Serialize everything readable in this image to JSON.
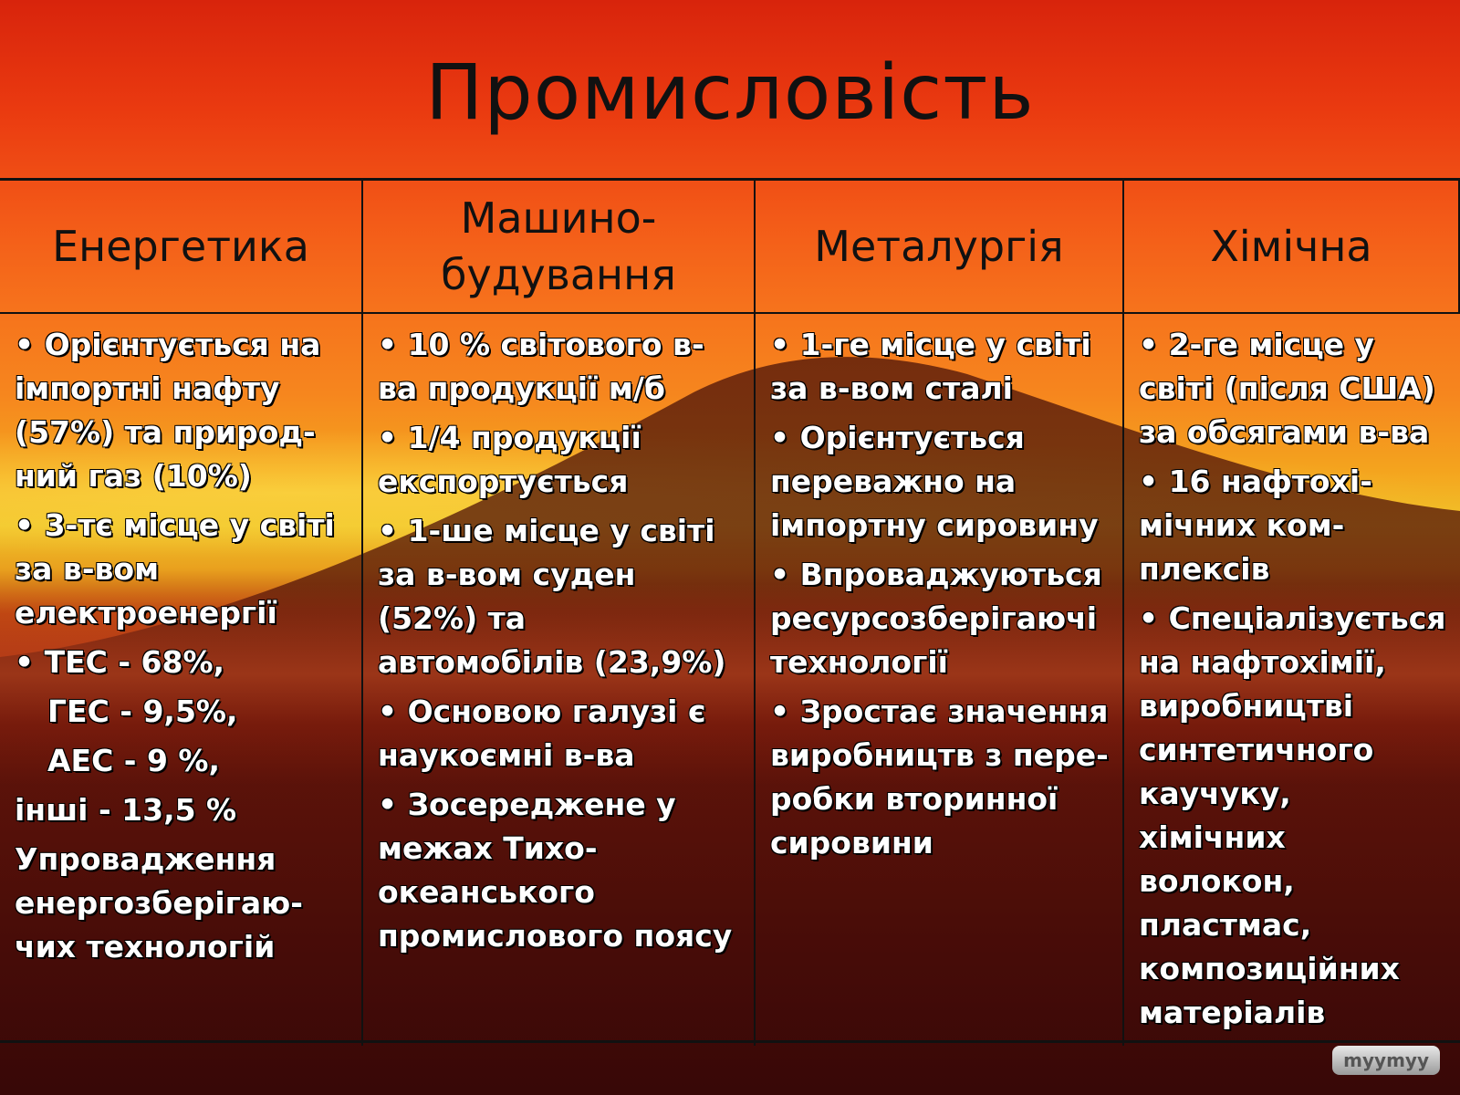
{
  "slide": {
    "title": "Промисловість",
    "columns": [
      {
        "header": "Енергетика",
        "items": [
          "• Орієнтується на імпортні нафту (57%) та природ-ний газ (10%)",
          "• 3-тє місце у світі за в-вом електроенергії",
          "• ТЕС - 68%,",
          "ГЕС - 9,5%,",
          "АЕС - 9 %,",
          "інші - 13,5 %",
          "Упровадження енергозберігаю-чих технологій"
        ]
      },
      {
        "header": "Машино-будування",
        "items": [
          "• 10 % світового в-ва продукції м/б",
          "• 1/4 продукції експортується",
          "• 1-ше місце у світі за в-вом суден (52%) та автомобілів (23,9%)",
          "• Основою галузі є наукоємні в-ва",
          "• Зосереджене у межах Тихо-океанського промислового поясу"
        ]
      },
      {
        "header": "Металургія",
        "items": [
          "• 1-ге місце у світі за в-вом сталі",
          "• Орієнтується переважно на імпортну сировину",
          "• Впроваджуються ресурсозберігаючі технології",
          "• Зростає значення виробництв з пере-робки вторинної сировини"
        ]
      },
      {
        "header": "Хімічна",
        "items": [
          "• 2-ге місце у світі (після США) за обсягами в-ва",
          "• 16 нафтохі-мічних ком-плексів",
          "• Спеціалізується на нафтохімії, виробництві синтетичного каучуку, хімічних волокон, пластмас, композиційних матеріалів"
        ]
      }
    ],
    "watermark": "myymyy"
  }
}
